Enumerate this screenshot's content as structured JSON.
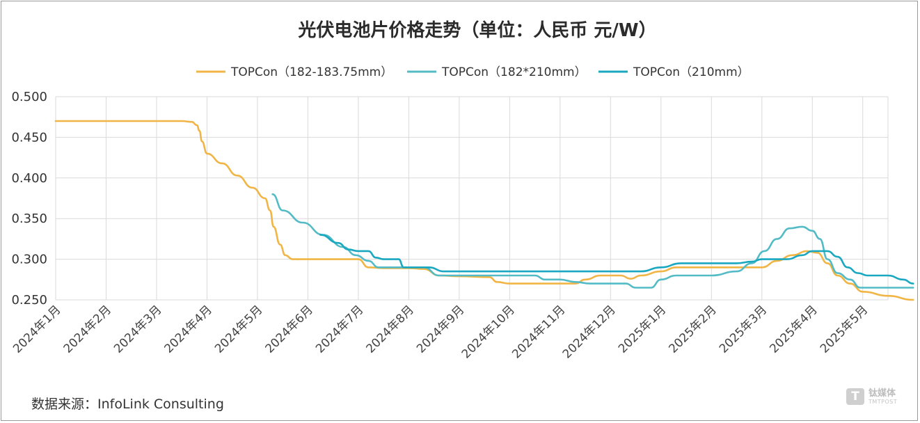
{
  "chart_data": {
    "type": "line",
    "title": "光伏电池片价格走势（单位：人民币 元/W）",
    "xlabel": "",
    "ylabel": "",
    "ylim": [
      0.25,
      0.5
    ],
    "yticks": [
      "0.500",
      "0.450",
      "0.400",
      "0.350",
      "0.300",
      "0.250"
    ],
    "categories": [
      "2024年1月",
      "2024年2月",
      "2024年3月",
      "2024年4月",
      "2024年5月",
      "2024年6月",
      "2024年7月",
      "2024年8月",
      "2024年9月",
      "2024年10月",
      "2024年11月",
      "2024年12月",
      "2025年1月",
      "2025年2月",
      "2025年3月",
      "2025年4月",
      "2025年5月"
    ],
    "grid": true,
    "legend_position": "top",
    "series": [
      {
        "name": "TOPCon（182-183.75mm）",
        "color": "#f0b545",
        "values": [
          [
            0,
            0.47
          ],
          [
            1,
            0.47
          ],
          [
            2,
            0.47
          ],
          [
            2.5,
            0.47
          ],
          [
            2.7,
            0.469
          ],
          [
            2.8,
            0.465
          ],
          [
            2.85,
            0.458
          ],
          [
            2.9,
            0.445
          ],
          [
            3.0,
            0.43
          ],
          [
            3.3,
            0.418
          ],
          [
            3.6,
            0.403
          ],
          [
            3.9,
            0.388
          ],
          [
            4.15,
            0.375
          ],
          [
            4.25,
            0.36
          ],
          [
            4.32,
            0.34
          ],
          [
            4.45,
            0.318
          ],
          [
            4.55,
            0.305
          ],
          [
            4.7,
            0.3
          ],
          [
            5,
            0.3
          ],
          [
            5.5,
            0.3
          ],
          [
            6.0,
            0.3
          ],
          [
            6.2,
            0.29
          ],
          [
            6.5,
            0.289
          ],
          [
            7,
            0.289
          ],
          [
            7.3,
            0.288
          ],
          [
            7.6,
            0.28
          ],
          [
            8,
            0.279
          ],
          [
            8.6,
            0.278
          ],
          [
            8.75,
            0.272
          ],
          [
            9,
            0.27
          ],
          [
            10,
            0.27
          ],
          [
            10.3,
            0.27
          ],
          [
            10.5,
            0.275
          ],
          [
            10.8,
            0.28
          ],
          [
            11.2,
            0.28
          ],
          [
            11.4,
            0.276
          ],
          [
            11.6,
            0.28
          ],
          [
            12,
            0.285
          ],
          [
            12.3,
            0.29
          ],
          [
            13,
            0.29
          ],
          [
            14,
            0.29
          ],
          [
            14.3,
            0.298
          ],
          [
            14.6,
            0.305
          ],
          [
            14.9,
            0.31
          ],
          [
            15.1,
            0.308
          ],
          [
            15.3,
            0.295
          ],
          [
            15.5,
            0.28
          ],
          [
            15.75,
            0.27
          ],
          [
            16,
            0.26
          ],
          [
            16.5,
            0.255
          ],
          [
            17.0,
            0.25
          ]
        ]
      },
      {
        "name": "TOPCon（182*210mm）",
        "color": "#53bbc6",
        "values": [
          [
            4.3,
            0.38
          ],
          [
            4.5,
            0.36
          ],
          [
            4.9,
            0.345
          ],
          [
            5.3,
            0.33
          ],
          [
            5.7,
            0.315
          ],
          [
            5.95,
            0.305
          ],
          [
            6.2,
            0.298
          ],
          [
            6.4,
            0.29
          ],
          [
            7,
            0.29
          ],
          [
            7.3,
            0.29
          ],
          [
            7.6,
            0.28
          ],
          [
            8,
            0.28
          ],
          [
            9,
            0.28
          ],
          [
            9.5,
            0.28
          ],
          [
            9.7,
            0.275
          ],
          [
            10,
            0.275
          ],
          [
            10.3,
            0.272
          ],
          [
            10.6,
            0.27
          ],
          [
            11,
            0.27
          ],
          [
            11.3,
            0.27
          ],
          [
            11.5,
            0.265
          ],
          [
            11.8,
            0.265
          ],
          [
            12,
            0.275
          ],
          [
            12.3,
            0.28
          ],
          [
            13,
            0.28
          ],
          [
            13.5,
            0.285
          ],
          [
            13.8,
            0.295
          ],
          [
            14.05,
            0.31
          ],
          [
            14.3,
            0.325
          ],
          [
            14.55,
            0.338
          ],
          [
            14.8,
            0.34
          ],
          [
            15.0,
            0.335
          ],
          [
            15.15,
            0.325
          ],
          [
            15.3,
            0.3
          ],
          [
            15.5,
            0.283
          ],
          [
            15.75,
            0.275
          ],
          [
            15.95,
            0.265
          ],
          [
            16.5,
            0.265
          ],
          [
            17.0,
            0.265
          ]
        ]
      },
      {
        "name": "TOPCon（210mm）",
        "color": "#1aa7c0",
        "values": [
          [
            5.25,
            0.33
          ],
          [
            5.6,
            0.32
          ],
          [
            5.8,
            0.312
          ],
          [
            6.0,
            0.31
          ],
          [
            6.2,
            0.31
          ],
          [
            6.35,
            0.302
          ],
          [
            6.5,
            0.3
          ],
          [
            6.8,
            0.3
          ],
          [
            6.9,
            0.29
          ],
          [
            7.2,
            0.29
          ],
          [
            7.4,
            0.29
          ],
          [
            7.7,
            0.285
          ],
          [
            8,
            0.285
          ],
          [
            9,
            0.285
          ],
          [
            10,
            0.285
          ],
          [
            11,
            0.285
          ],
          [
            11.6,
            0.285
          ],
          [
            12,
            0.29
          ],
          [
            12.4,
            0.295
          ],
          [
            13,
            0.295
          ],
          [
            13.5,
            0.295
          ],
          [
            13.8,
            0.297
          ],
          [
            14.0,
            0.3
          ],
          [
            14.5,
            0.3
          ],
          [
            14.8,
            0.305
          ],
          [
            15.0,
            0.31
          ],
          [
            15.3,
            0.31
          ],
          [
            15.5,
            0.303
          ],
          [
            15.7,
            0.29
          ],
          [
            15.9,
            0.283
          ],
          [
            16.1,
            0.28
          ],
          [
            16.5,
            0.28
          ],
          [
            16.8,
            0.275
          ],
          [
            17.0,
            0.27
          ]
        ]
      }
    ]
  },
  "source": "数据来源：InfoLink Consulting",
  "watermark": {
    "logo": "T",
    "cn": "钛媒体",
    "en": "TMTPOST"
  }
}
